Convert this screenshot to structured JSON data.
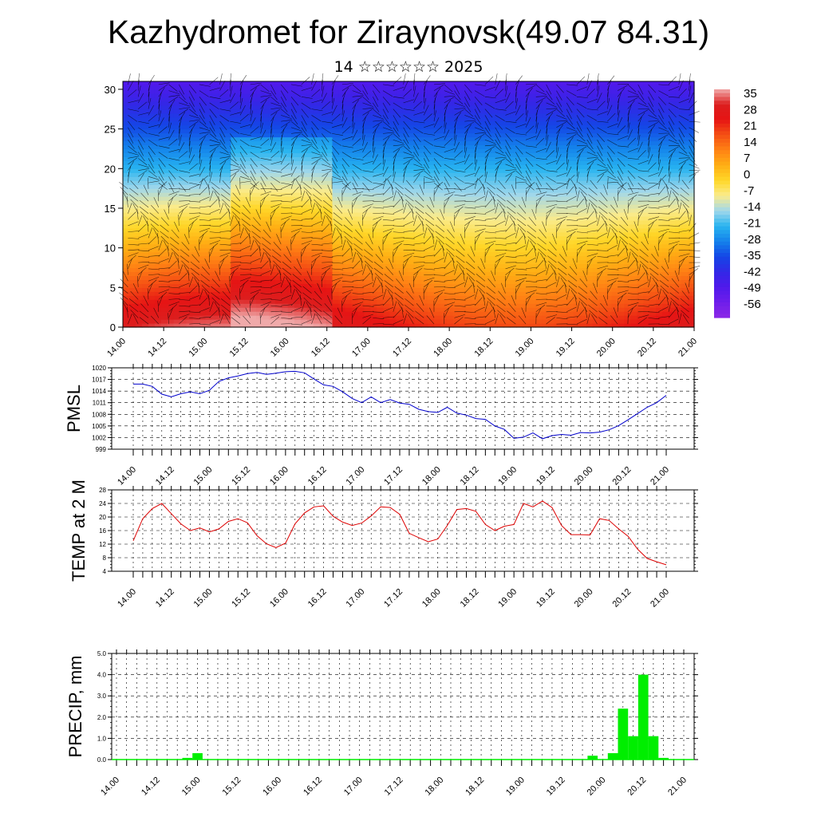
{
  "title": "Kazhydromet for Ziraynovsk(49.07 84.31)",
  "subtitle": "14 ☆☆☆☆☆☆ 2025",
  "chart_data": [
    {
      "type": "heatmap",
      "name": "temperature-wind-cross-section",
      "xlabel": "",
      "ylabel": "",
      "x_ticks": [
        "14.00",
        "14.12",
        "15.00",
        "15.12",
        "16.00",
        "16.12",
        "17.00",
        "17.12",
        "18.00",
        "18.12",
        "19.00",
        "19.12",
        "20.00",
        "20.12",
        "21.00"
      ],
      "ylim": [
        0,
        31
      ],
      "y_ticks": [
        0,
        5,
        10,
        15,
        20,
        25,
        30
      ],
      "colorbar_labels": [
        "35",
        "28",
        "21",
        "14",
        "7",
        "0",
        "-7",
        "-14",
        "-21",
        "-28",
        "-35",
        "-42",
        "-49",
        "-56"
      ],
      "colorbar_range": [
        -63,
        42
      ],
      "overlay": "wind barbs",
      "grid": false
    },
    {
      "type": "line",
      "name": "pmsl",
      "ylabel": "PMSL",
      "ylim": [
        999,
        1020
      ],
      "y_ticks": [
        999,
        1002,
        1005,
        1008,
        1011,
        1014,
        1017,
        1020
      ],
      "x_ticks": [
        "14.00",
        "14.12",
        "15.00",
        "15.12",
        "16.00",
        "16.12",
        "17.00",
        "17.12",
        "18.00",
        "18.12",
        "19.00",
        "19.12",
        "20.00",
        "20.12",
        "21.00"
      ],
      "x_step_hours": 3,
      "color": "#0000cc",
      "grid": true,
      "series": [
        {
          "values": [
            1015.8,
            1015.8,
            1015.2,
            1013.2,
            1012.5,
            1013.3,
            1013.8,
            1013.3,
            1014.2,
            1016.5,
            1017.4,
            1017.9,
            1018.5,
            1018.8,
            1018.3,
            1018.6,
            1019.0,
            1019.1,
            1018.7,
            1017.1,
            1015.6,
            1015.2,
            1013.8,
            1012.1,
            1011.0,
            1012.5,
            1011.0,
            1011.8,
            1010.9,
            1010.6,
            1009.3,
            1008.7,
            1008.5,
            1009.8,
            1008.3,
            1007.8,
            1006.9,
            1006.7,
            1005.0,
            1004.1,
            1001.8,
            1002.1,
            1003.2,
            1001.7,
            1002.5,
            1002.8,
            1002.6,
            1003.3,
            1003.2,
            1003.4,
            1004.0,
            1005.1,
            1006.6,
            1008.2,
            1009.8,
            1011.0,
            1012.9
          ]
        }
      ]
    },
    {
      "type": "line",
      "name": "temp-2m",
      "ylabel": "TEMP at 2 M",
      "ylim": [
        4,
        28
      ],
      "y_ticks": [
        4,
        8,
        12,
        16,
        20,
        24,
        28
      ],
      "x_ticks": [
        "14.00",
        "14.12",
        "15.00",
        "15.12",
        "16.00",
        "16.12",
        "17.00",
        "17.12",
        "18.00",
        "18.12",
        "19.00",
        "19.12",
        "20.00",
        "20.12",
        "21.00"
      ],
      "x_step_hours": 3,
      "color": "#dd0000",
      "grid": true,
      "series": [
        {
          "values": [
            13.0,
            19.5,
            22.5,
            24.0,
            21.0,
            18.0,
            16.0,
            16.8,
            15.6,
            16.5,
            18.7,
            19.5,
            18.3,
            14.5,
            12.1,
            11.0,
            12.3,
            18.0,
            21.2,
            23.0,
            23.3,
            20.2,
            18.5,
            17.5,
            18.2,
            20.3,
            23.0,
            22.8,
            20.8,
            15.2,
            13.9,
            12.7,
            13.5,
            17.5,
            22.2,
            22.5,
            21.7,
            17.8,
            16.0,
            17.3,
            17.8,
            24.0,
            23.0,
            24.7,
            22.8,
            17.5,
            14.8,
            14.8,
            14.7,
            19.5,
            19.0,
            16.5,
            14.3,
            10.5,
            7.8,
            6.8,
            5.9
          ]
        }
      ]
    },
    {
      "type": "bar",
      "name": "precip",
      "ylabel": "PRECIP, mm",
      "ylim": [
        0,
        5
      ],
      "y_ticks": [
        "0.0",
        "1.0",
        "2.0",
        "3.0",
        "4.0",
        "5.0"
      ],
      "x_ticks": [
        "14.00",
        "14.12",
        "15.00",
        "15.12",
        "16.00",
        "16.12",
        "17.00",
        "17.12",
        "18.00",
        "18.12",
        "19.00",
        "19.12",
        "20.00",
        "20.12",
        "21.00"
      ],
      "x_step_hours": 3,
      "color": "#00ee00",
      "grid": true,
      "series": [
        {
          "values": [
            0,
            0,
            0,
            0,
            0,
            0,
            0,
            0.08,
            0.3,
            0,
            0,
            0,
            0,
            0,
            0,
            0,
            0,
            0,
            0,
            0,
            0,
            0,
            0,
            0,
            0,
            0,
            0,
            0,
            0,
            0,
            0,
            0,
            0,
            0,
            0,
            0,
            0,
            0,
            0,
            0,
            0,
            0,
            0,
            0,
            0,
            0,
            0,
            0.18,
            0,
            0.3,
            2.4,
            1.1,
            4.0,
            1.1,
            0.08,
            0,
            0
          ]
        }
      ]
    }
  ]
}
